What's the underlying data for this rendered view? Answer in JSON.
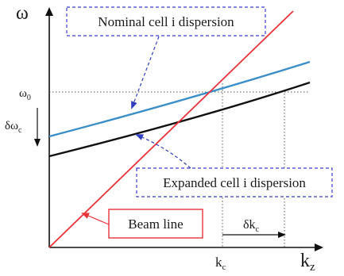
{
  "axes": {
    "y_symbol": "ω",
    "x_symbol": "k",
    "x_subscript": "z"
  },
  "ticks": {
    "omega0_main": "ω",
    "omega0_sub": "0",
    "kc_main": "k",
    "kc_sub": "c"
  },
  "labels": {
    "nominal": "Nominal cell i dispersion",
    "expanded": "Expanded cell i dispersion",
    "beam": "Beam line",
    "delta_omega_main": "δω",
    "delta_omega_sub": "c",
    "delta_k_main": "δk",
    "delta_k_sub": "c"
  },
  "colors": {
    "beam_line": "#e8323a",
    "nominal_curve": "#3a8fc8",
    "expanded_curve": "#111111",
    "callout_border_dashed": "#3b3bd4",
    "beam_label_border": "#e8323a",
    "pointer_dashed": "#2f3fc0"
  }
}
